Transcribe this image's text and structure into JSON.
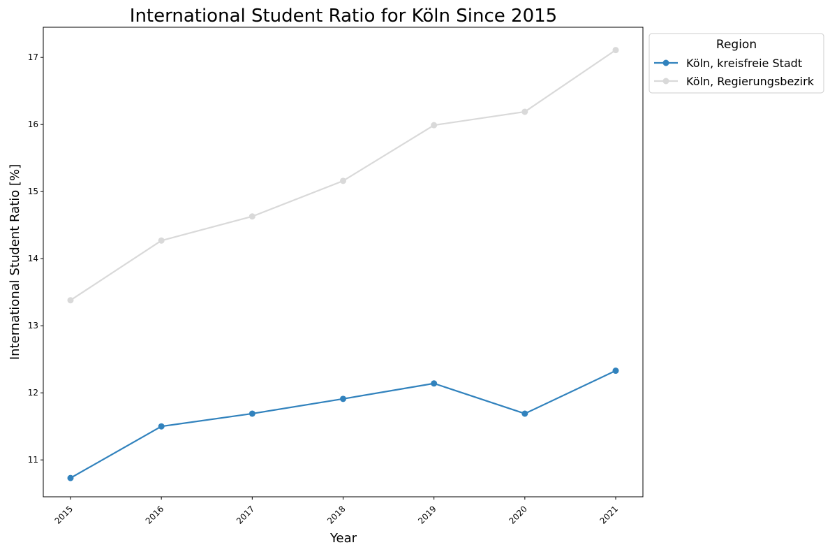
{
  "chart_data": {
    "type": "line",
    "title": "International Student Ratio for Köln Since 2015",
    "xlabel": "Year",
    "ylabel": "International Student Ratio [%]",
    "categories": [
      "2015",
      "2016",
      "2017",
      "2018",
      "2019",
      "2020",
      "2021"
    ],
    "ylim": [
      10.45,
      17.45
    ],
    "yticks": [
      "11",
      "12",
      "13",
      "14",
      "15",
      "16",
      "17"
    ],
    "grid": false,
    "legend": {
      "title": "Region",
      "placement": "outside-top-right"
    },
    "series": [
      {
        "name": "Köln, kreisfreie Stadt",
        "color": "#3182bd",
        "values": [
          10.73,
          11.5,
          11.69,
          11.91,
          12.14,
          11.69,
          12.33
        ]
      },
      {
        "name": "Köln, Regierungsbezirk",
        "color": "#d9d9d9",
        "values": [
          13.38,
          14.27,
          14.63,
          15.16,
          15.99,
          16.19,
          17.11
        ]
      }
    ]
  }
}
